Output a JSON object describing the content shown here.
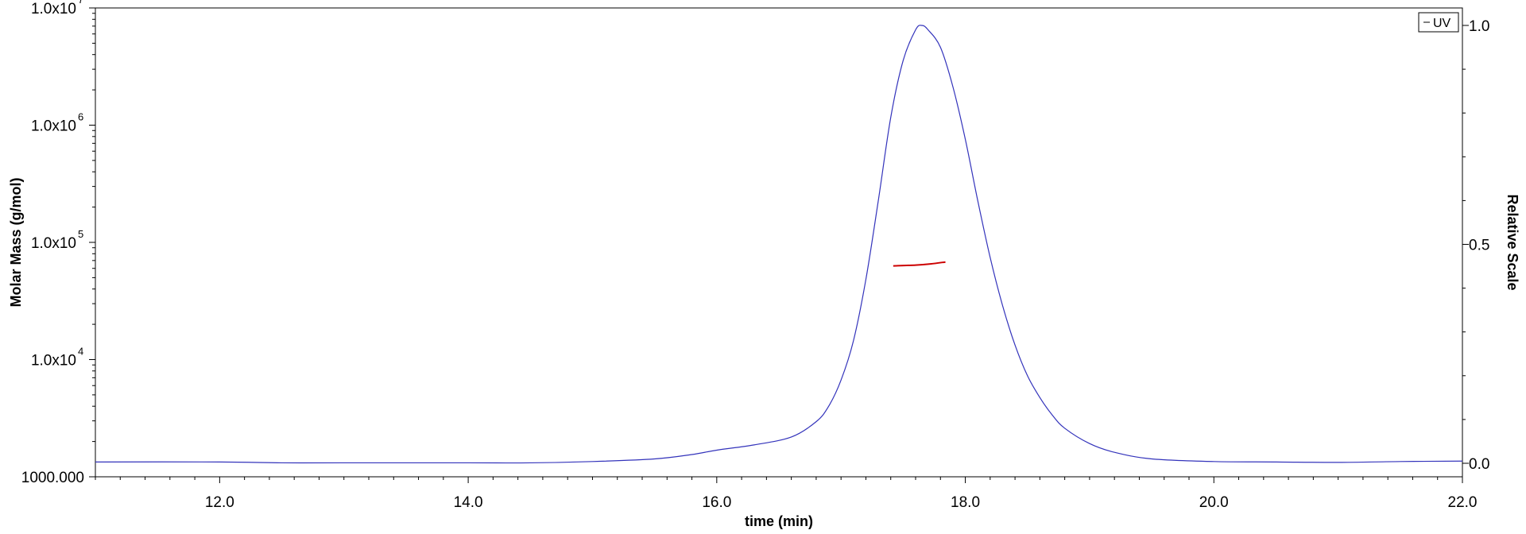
{
  "chart_data": {
    "type": "line",
    "title": "",
    "xlabel": "time (min)",
    "ylabel": "Molar Mass (g/mol)",
    "y2label": "Relative Scale",
    "xlim": [
      11.0,
      22.0
    ],
    "ylim": [
      1000,
      10000000
    ],
    "y_scale": "log",
    "y2lim": [
      0.0,
      1.0
    ],
    "x_ticks": [
      "12.0",
      "14.0",
      "16.0",
      "18.0",
      "20.0",
      "22.0"
    ],
    "y_ticks": [
      {
        "base": "1000.000",
        "exp": ""
      },
      {
        "base": "1.0x10",
        "exp": "4"
      },
      {
        "base": "1.0x10",
        "exp": "5"
      },
      {
        "base": "1.0x10",
        "exp": "6"
      },
      {
        "base": "1.0x10",
        "exp": "7"
      }
    ],
    "y2_ticks": [
      "0.0",
      "0.5",
      "1.0"
    ],
    "legend": {
      "position": "top-right",
      "entries": [
        "UV"
      ]
    },
    "grid": false,
    "colors": {
      "uv": "#3333bb",
      "molar_mass": "#cc0000"
    },
    "series": [
      {
        "name": "UV",
        "axis": "right",
        "x": [
          11.0,
          12.0,
          12.5,
          13.0,
          14.0,
          14.5,
          15.0,
          15.5,
          15.8,
          16.0,
          16.3,
          16.6,
          16.8,
          16.9,
          17.0,
          17.1,
          17.2,
          17.3,
          17.4,
          17.5,
          17.6,
          17.65,
          17.7,
          17.8,
          17.9,
          18.0,
          18.1,
          18.2,
          18.3,
          18.4,
          18.5,
          18.6,
          18.7,
          18.8,
          19.0,
          19.2,
          19.5,
          20.0,
          20.5,
          21.0,
          21.5,
          22.0
        ],
        "values": [
          0.003,
          0.003,
          0.001,
          0.001,
          0.001,
          0.001,
          0.004,
          0.01,
          0.02,
          0.03,
          0.042,
          0.06,
          0.095,
          0.13,
          0.19,
          0.28,
          0.42,
          0.6,
          0.79,
          0.92,
          0.99,
          1.0,
          0.99,
          0.95,
          0.86,
          0.74,
          0.6,
          0.47,
          0.36,
          0.27,
          0.2,
          0.15,
          0.11,
          0.08,
          0.045,
          0.025,
          0.01,
          0.004,
          0.003,
          0.002,
          0.004,
          0.005
        ]
      },
      {
        "name": "",
        "axis": "left",
        "x": [
          17.42,
          17.6,
          17.72,
          17.84
        ],
        "values": [
          63000,
          64000,
          65500,
          68000
        ]
      }
    ]
  }
}
